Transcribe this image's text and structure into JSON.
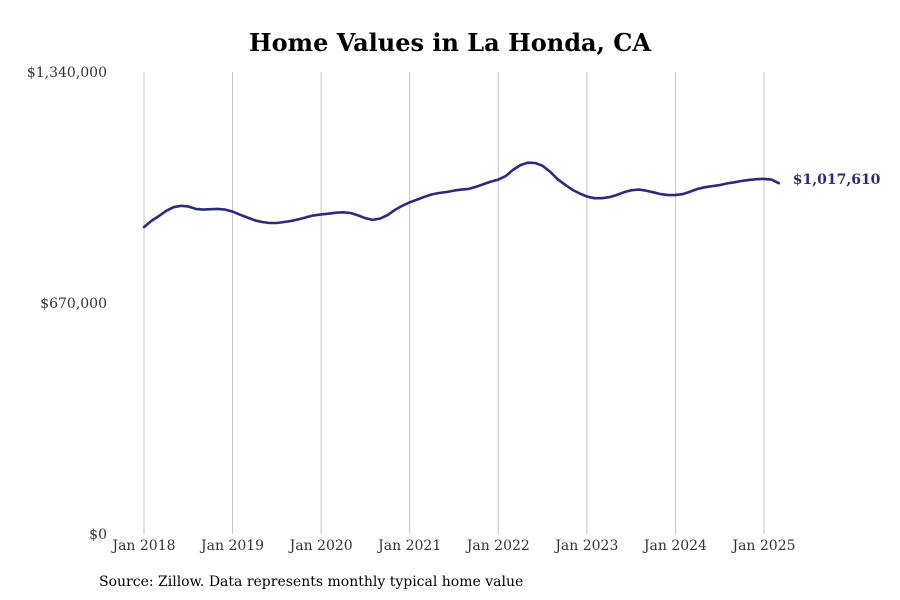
{
  "source_note": "Source: Zillow. Data represents monthly typical home value",
  "chart_data": {
    "type": "line",
    "title": "Home Values in La Honda, CA",
    "xlabel": "",
    "ylabel": "",
    "ylim": [
      0,
      1340000
    ],
    "yticks": [
      {
        "value": 0,
        "label": "$0"
      },
      {
        "value": 670000,
        "label": "$670,000"
      },
      {
        "value": 1340000,
        "label": "$1,340,000"
      }
    ],
    "xticks": [
      {
        "value": "2018-01",
        "label": "Jan 2018"
      },
      {
        "value": "2019-01",
        "label": "Jan 2019"
      },
      {
        "value": "2020-01",
        "label": "Jan 2020"
      },
      {
        "value": "2021-01",
        "label": "Jan 2021"
      },
      {
        "value": "2022-01",
        "label": "Jan 2022"
      },
      {
        "value": "2023-01",
        "label": "Jan 2023"
      },
      {
        "value": "2024-01",
        "label": "Jan 2024"
      },
      {
        "value": "2025-01",
        "label": "Jan 2025"
      }
    ],
    "grid": "vertical",
    "line_color": "#2e2a7a",
    "last_value_label": "$1,017,610",
    "x": [
      "2018-01",
      "2018-02",
      "2018-03",
      "2018-04",
      "2018-05",
      "2018-06",
      "2018-07",
      "2018-08",
      "2018-09",
      "2018-10",
      "2018-11",
      "2018-12",
      "2019-01",
      "2019-02",
      "2019-03",
      "2019-04",
      "2019-05",
      "2019-06",
      "2019-07",
      "2019-08",
      "2019-09",
      "2019-10",
      "2019-11",
      "2019-12",
      "2020-01",
      "2020-02",
      "2020-03",
      "2020-04",
      "2020-05",
      "2020-06",
      "2020-07",
      "2020-08",
      "2020-09",
      "2020-10",
      "2020-11",
      "2020-12",
      "2021-01",
      "2021-02",
      "2021-03",
      "2021-04",
      "2021-05",
      "2021-06",
      "2021-07",
      "2021-08",
      "2021-09",
      "2021-10",
      "2021-11",
      "2021-12",
      "2022-01",
      "2022-02",
      "2022-03",
      "2022-04",
      "2022-05",
      "2022-06",
      "2022-07",
      "2022-08",
      "2022-09",
      "2022-10",
      "2022-11",
      "2022-12",
      "2023-01",
      "2023-02",
      "2023-03",
      "2023-04",
      "2023-05",
      "2023-06",
      "2023-07",
      "2023-08",
      "2023-09",
      "2023-10",
      "2023-11",
      "2023-12",
      "2024-01",
      "2024-02",
      "2024-03",
      "2024-04",
      "2024-05",
      "2024-06",
      "2024-07",
      "2024-08",
      "2024-09",
      "2024-10",
      "2024-11",
      "2024-12",
      "2025-01",
      "2025-02",
      "2025-03"
    ],
    "series": [
      {
        "values": [
          890000,
          908000,
          922000,
          937000,
          948000,
          952000,
          950000,
          943000,
          941000,
          942000,
          943000,
          941000,
          935000,
          926000,
          918000,
          910000,
          905000,
          902000,
          902000,
          905000,
          908000,
          913000,
          919000,
          924000,
          927000,
          929000,
          932000,
          933000,
          931000,
          924000,
          916000,
          911000,
          915000,
          925000,
          940000,
          952000,
          962000,
          970000,
          978000,
          985000,
          989000,
          992000,
          996000,
          999000,
          1001000,
          1007000,
          1015000,
          1022000,
          1028000,
          1038000,
          1056000,
          1070000,
          1077000,
          1076000,
          1068000,
          1051000,
          1030000,
          1014000,
          999000,
          988000,
          979000,
          974000,
          974000,
          977000,
          983000,
          991000,
          997000,
          999000,
          996000,
          991000,
          986000,
          983000,
          983000,
          986000,
          993000,
          1001000,
          1006000,
          1009000,
          1012000,
          1017000,
          1020000,
          1024000,
          1027000,
          1029000,
          1030000,
          1028000,
          1017610
        ]
      }
    ]
  }
}
